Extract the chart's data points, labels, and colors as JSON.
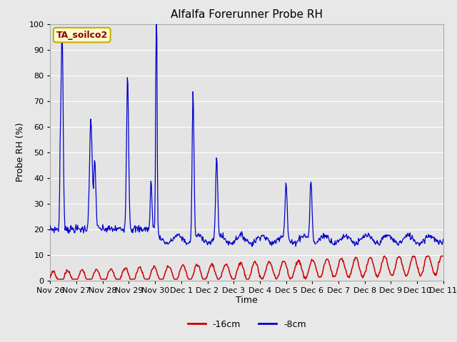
{
  "title": "Alfalfa Forerunner Probe RH",
  "xlabel": "Time",
  "ylabel": "Probe RH (%)",
  "ylim": [
    0,
    100
  ],
  "fig_bg_color": "#e8e8e8",
  "plot_bg_color": "#e4e4e4",
  "grid_color": "#ffffff",
  "blue_color": "#0000cc",
  "red_color": "#cc0000",
  "legend_labels": [
    "-16cm",
    "-8cm"
  ],
  "annotation_text": "TA_soilco2",
  "annotation_bg": "#ffffcc",
  "annotation_border": "#ccaa00",
  "annotation_text_color": "#880000",
  "x_tick_labels": [
    "Nov 26",
    "Nov 27",
    "Nov 28",
    "Nov 29",
    "Nov 30",
    "Dec 1",
    "Dec 2",
    "Dec 3",
    "Dec 4",
    "Dec 5",
    "Dec 6",
    "Dec 7",
    "Dec 8",
    "Dec 9",
    "Dec 10",
    "Dec 11"
  ],
  "yticks": [
    0,
    10,
    20,
    30,
    40,
    50,
    60,
    70,
    80,
    90,
    100
  ],
  "n_points": 720,
  "total_days": 15
}
